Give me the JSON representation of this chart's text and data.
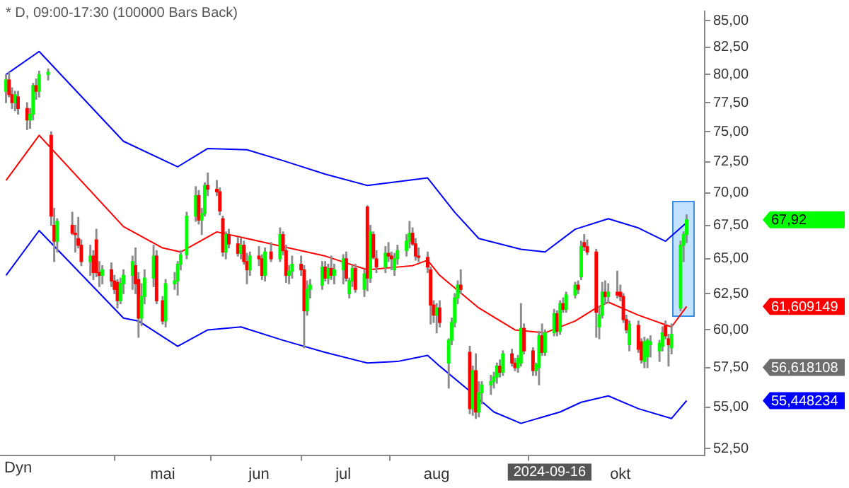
{
  "chart_data": {
    "type": "candlestick",
    "title": "* D, 09:00-17:30 (100000 Bars Back)",
    "x": [
      "2024-03-11",
      "2024-03-12",
      "2024-03-13",
      "2024-03-14",
      "2024-03-15",
      "2024-03-18",
      "2024-03-19",
      "2024-03-20",
      "2024-03-21",
      "2024-03-22",
      "2024-03-25",
      "2024-03-26",
      "2024-03-27",
      "2024-03-28",
      "2024-04-02",
      "2024-04-03",
      "2024-04-04",
      "2024-04-05",
      "2024-04-08",
      "2024-04-09",
      "2024-04-10",
      "2024-04-11",
      "2024-04-12",
      "2024-04-15",
      "2024-04-16",
      "2024-04-17",
      "2024-04-18",
      "2024-04-19",
      "2024-04-22",
      "2024-04-23",
      "2024-04-24",
      "2024-04-25",
      "2024-04-26",
      "2024-04-29",
      "2024-04-30",
      "2024-05-02",
      "2024-05-03",
      "2024-05-06",
      "2024-05-07",
      "2024-05-08",
      "2024-05-10",
      "2024-05-13",
      "2024-05-14",
      "2024-05-15",
      "2024-05-16",
      "2024-05-17",
      "2024-05-20",
      "2024-05-21",
      "2024-05-22",
      "2024-05-23",
      "2024-05-24",
      "2024-05-27",
      "2024-05-28",
      "2024-05-29",
      "2024-05-30",
      "2024-05-31",
      "2024-06-03",
      "2024-06-04",
      "2024-06-05",
      "2024-06-07",
      "2024-06-10",
      "2024-06-11",
      "2024-06-12",
      "2024-06-13",
      "2024-06-14",
      "2024-06-17",
      "2024-06-18",
      "2024-06-19",
      "2024-06-20",
      "2024-06-24",
      "2024-06-25",
      "2024-06-26",
      "2024-06-27",
      "2024-06-28",
      "2024-07-01",
      "2024-07-02",
      "2024-07-03",
      "2024-07-04",
      "2024-07-05",
      "2024-07-08",
      "2024-07-09",
      "2024-07-10",
      "2024-07-11",
      "2024-07-12",
      "2024-07-15",
      "2024-07-16",
      "2024-07-17",
      "2024-07-18",
      "2024-07-19",
      "2024-07-22",
      "2024-07-23",
      "2024-07-24",
      "2024-07-25",
      "2024-07-26",
      "2024-07-29",
      "2024-07-30",
      "2024-07-31",
      "2024-08-01",
      "2024-08-02",
      "2024-08-05",
      "2024-08-06",
      "2024-08-07",
      "2024-08-08",
      "2024-08-09",
      "2024-08-12",
      "2024-08-13",
      "2024-08-14",
      "2024-08-15",
      "2024-08-16",
      "2024-08-19",
      "2024-08-20",
      "2024-08-21",
      "2024-08-22",
      "2024-08-23",
      "2024-08-26",
      "2024-08-27",
      "2024-08-28",
      "2024-08-29",
      "2024-08-30",
      "2024-09-02",
      "2024-09-03",
      "2024-09-04",
      "2024-09-05",
      "2024-09-06",
      "2024-09-09",
      "2024-09-10",
      "2024-09-11",
      "2024-09-12",
      "2024-09-13",
      "2024-09-16",
      "2024-09-17",
      "2024-09-18",
      "2024-09-19",
      "2024-09-20",
      "2024-09-23",
      "2024-09-24",
      "2024-09-25",
      "2024-09-26",
      "2024-09-27",
      "2024-09-30",
      "2024-10-01",
      "2024-10-02",
      "2024-10-03",
      "2024-10-04",
      "2024-10-07",
      "2024-10-08",
      "2024-10-09",
      "2024-10-10",
      "2024-10-11",
      "2024-10-14",
      "2024-10-15",
      "2024-10-16",
      "2024-10-17",
      "2024-10-18",
      "2024-10-21",
      "2024-10-22",
      "2024-10-23"
    ],
    "ohlc": [
      [
        78.5,
        80,
        77.5,
        79.5
      ],
      [
        79.5,
        80.2,
        78,
        78.2
      ],
      [
        78.2,
        78.8,
        77,
        77.5
      ],
      [
        77.5,
        78.5,
        76.8,
        78.2
      ],
      [
        78,
        78.5,
        76.5,
        77
      ],
      [
        77,
        77.5,
        75.2,
        76
      ],
      [
        76,
        77,
        75.3,
        76.5
      ],
      [
        76.5,
        79.2,
        76,
        79
      ],
      [
        79,
        79.6,
        77.8,
        78.5
      ],
      [
        78.5,
        80.3,
        78,
        80
      ],
      [
        80,
        80.5,
        79.5,
        80.2
      ],
      [
        74.7,
        75,
        67.5,
        68.2
      ],
      [
        67.5,
        68.8,
        64.8,
        66.3
      ],
      [
        66.3,
        68,
        65.5,
        67.8
      ],
      [
        67.5,
        68.5,
        66.8,
        66.9
      ],
      [
        66.9,
        67.5,
        65.5,
        66.8
      ],
      [
        66.5,
        68.1,
        65.8,
        66
      ],
      [
        66,
        66.4,
        64.5,
        64.8
      ],
      [
        64.8,
        66,
        63.8,
        65.2
      ],
      [
        65.2,
        65.6,
        63.5,
        64
      ],
      [
        66.4,
        67.2,
        63.7,
        64
      ],
      [
        64,
        64.8,
        63,
        63.8
      ],
      [
        63.8,
        64.5,
        63.2,
        64.2
      ],
      [
        64.2,
        64.7,
        63,
        63.4
      ],
      [
        63.4,
        63.8,
        62.5,
        62.8
      ],
      [
        63.3,
        63.5,
        61.5,
        62
      ],
      [
        62,
        63.6,
        61.8,
        63.2
      ],
      [
        63.2,
        64.2,
        62.5,
        63.8
      ],
      [
        63.8,
        65.2,
        62.8,
        64.8
      ],
      [
        64.5,
        65.8,
        62.5,
        63.2
      ],
      [
        63.5,
        64,
        59.5,
        60.8
      ],
      [
        60.8,
        63.2,
        60.3,
        62.3
      ],
      [
        62.3,
        64.2,
        61.8,
        63.6
      ],
      [
        63.6,
        66,
        63,
        65.2
      ],
      [
        65.2,
        65.6,
        61.8,
        62
      ],
      [
        62,
        62.3,
        60.4,
        60.6
      ],
      [
        60.6,
        63.5,
        60.2,
        63.2
      ],
      [
        63.2,
        64,
        62.8,
        63.4
      ],
      [
        63.4,
        64.8,
        62.4,
        64.6
      ],
      [
        64.6,
        65.6,
        64.2,
        65.3
      ],
      [
        65.3,
        68.5,
        65,
        68.2
      ],
      [
        68.2,
        70.5,
        67.8,
        69.8
      ],
      [
        69.8,
        70.2,
        67.6,
        67.9
      ],
      [
        67.9,
        68.8,
        66.8,
        68.4
      ],
      [
        68.4,
        70.8,
        68.2,
        70.6
      ],
      [
        70.6,
        71.6,
        69.8,
        70.3
      ],
      [
        70.3,
        71,
        69.8,
        70.1
      ],
      [
        70.1,
        70.4,
        68.3,
        68.6
      ],
      [
        68,
        68.2,
        65.2,
        65.5
      ],
      [
        65.5,
        67,
        65,
        66.8
      ],
      [
        66.8,
        67.2,
        65.8,
        66.1
      ],
      [
        66.1,
        66.6,
        65.2,
        65.4
      ],
      [
        65.4,
        66.5,
        65,
        66
      ],
      [
        66,
        66.3,
        64.6,
        64.8
      ],
      [
        64.8,
        65.4,
        63.2,
        64.2
      ],
      [
        64.2,
        65.5,
        63.8,
        65.2
      ],
      [
        65.2,
        65.9,
        64.5,
        65
      ],
      [
        65,
        65.3,
        63.5,
        63.8
      ],
      [
        63.8,
        65.8,
        63.4,
        65.5
      ],
      [
        65.5,
        66.2,
        64.8,
        65
      ],
      [
        65,
        67.3,
        64.8,
        66.8
      ],
      [
        66.8,
        67,
        65.3,
        65.6
      ],
      [
        65.6,
        66,
        63.3,
        63.8
      ],
      [
        63.8,
        64.5,
        63.2,
        64.1
      ],
      [
        64.1,
        65.2,
        63.6,
        64.6
      ],
      [
        64.6,
        65.2,
        63.8,
        64.2
      ],
      [
        64.2,
        64.5,
        58.8,
        61.3
      ],
      [
        61.3,
        63.4,
        61,
        62.8
      ],
      [
        62.8,
        63.5,
        62.2,
        63.1
      ],
      [
        63.1,
        64.8,
        62.8,
        64.4
      ],
      [
        64.4,
        64.8,
        63.4,
        63.6
      ],
      [
        63.6,
        64.6,
        63.2,
        64.3
      ],
      [
        64.3,
        65.2,
        63.5,
        63.8
      ],
      [
        63.8,
        64.6,
        63.2,
        64.2
      ],
      [
        64.2,
        65.3,
        63.2,
        65
      ],
      [
        65,
        65.5,
        63.4,
        63.6
      ],
      [
        62.5,
        63.6,
        62.2,
        63.4
      ],
      [
        63.4,
        64.5,
        63,
        64.3
      ],
      [
        64.3,
        64.6,
        62.6,
        62.8
      ],
      [
        62.8,
        64.2,
        62.3,
        63.9
      ],
      [
        68.9,
        69,
        62.7,
        63.6
      ],
      [
        63.6,
        67.5,
        63.3,
        67
      ],
      [
        66.8,
        67,
        65,
        65.1
      ],
      [
        65,
        65.6,
        64,
        64.4
      ],
      [
        64.4,
        65.9,
        64,
        65.4
      ],
      [
        65.4,
        66.2,
        64.8,
        65.2
      ],
      [
        65.2,
        65.5,
        64.2,
        65
      ],
      [
        64.2,
        65.4,
        63.8,
        65
      ],
      [
        65,
        66,
        64.6,
        65.6
      ],
      [
        65.6,
        66.8,
        65.2,
        66.3
      ],
      [
        66.3,
        67.8,
        65.8,
        66.9
      ],
      [
        66.9,
        67.3,
        66,
        66.1
      ],
      [
        66.1,
        66.5,
        64.9,
        65.2
      ],
      [
        65.2,
        65.8,
        64.8,
        65.1
      ],
      [
        65.1,
        65.5,
        64,
        64.4
      ],
      [
        64.2,
        64.4,
        60.4,
        61.7
      ],
      [
        61.7,
        62,
        60.5,
        61
      ],
      [
        61,
        61.8,
        59.8,
        61.5
      ],
      [
        61.5,
        62,
        60.2,
        60.5
      ],
      [
        57.8,
        59.4,
        56.2,
        59.3
      ],
      [
        59.3,
        60.8,
        59,
        60.5
      ],
      [
        60.5,
        62.5,
        60.2,
        62.2
      ],
      [
        62.2,
        63.4,
        61.8,
        63.1
      ],
      [
        63.1,
        64.2,
        62.5,
        62.8
      ],
      [
        58.5,
        58.9,
        54.6,
        54.9
      ],
      [
        54.9,
        57.6,
        54.5,
        57.3
      ],
      [
        57.3,
        58.4,
        54.3,
        54.7
      ],
      [
        54.7,
        56.6,
        54.4,
        55.9
      ],
      [
        55.9,
        56.6,
        55.2,
        56.4
      ],
      [
        56.4,
        57,
        55.8,
        56.6
      ],
      [
        56.6,
        57.2,
        56.2,
        56.9
      ],
      [
        56.9,
        57.8,
        56.5,
        57.6
      ],
      [
        57.6,
        58,
        56.9,
        57.2
      ],
      [
        57.2,
        58.6,
        57,
        58.4
      ],
      [
        58.4,
        58.7,
        57.6,
        57.8
      ],
      [
        57.8,
        58.1,
        57.3,
        57.5
      ],
      [
        57.5,
        58.3,
        57.2,
        58.1
      ],
      [
        57.8,
        61.8,
        57.6,
        60.1
      ],
      [
        60.1,
        60.4,
        58.4,
        58.6
      ],
      [
        58.6,
        58.8,
        57,
        57.3
      ],
      [
        57.3,
        57.8,
        57,
        57.7
      ],
      [
        57.5,
        59.9,
        56.4,
        59.6
      ],
      [
        59.6,
        60.4,
        58.3,
        58.5
      ],
      [
        58.5,
        60,
        58.3,
        59.8
      ],
      [
        59.8,
        61.4,
        59.6,
        61.1
      ],
      [
        61.1,
        61.3,
        59.6,
        59.9
      ],
      [
        59.9,
        62,
        59.7,
        61.8
      ],
      [
        61.8,
        62.2,
        61.2,
        61.4
      ],
      [
        61.4,
        62.6,
        61.2,
        62.4
      ],
      [
        62.4,
        63.3,
        62.2,
        63.1
      ],
      [
        63.1,
        63.4,
        62.5,
        62.8
      ],
      [
        63.7,
        66.3,
        63.5,
        65.9
      ],
      [
        66.2,
        66.8,
        65.6,
        65.9
      ],
      [
        65.9,
        66.4,
        65.3,
        65.5
      ],
      [
        65.5,
        65.7,
        59.5,
        61.2
      ],
      [
        60.2,
        61.6,
        59.4,
        61
      ],
      [
        61,
        63.3,
        60.8,
        62.6
      ],
      [
        62.6,
        63.4,
        61.8,
        62.3
      ],
      [
        62.3,
        63.2,
        61.9,
        62.6
      ],
      [
        62.6,
        64.1,
        62.2,
        62.4
      ],
      [
        62.6,
        63.1,
        62,
        62.3
      ],
      [
        62.3,
        62.5,
        60.5,
        60.7
      ],
      [
        60.7,
        61,
        59.8,
        60
      ],
      [
        59,
        60.6,
        58.6,
        60.4
      ],
      [
        60.3,
        60.6,
        58.5,
        58.7
      ],
      [
        59.2,
        59.4,
        57.8,
        58
      ],
      [
        57.9,
        59.5,
        57.5,
        59.2
      ],
      [
        58.2,
        59.4,
        57.5,
        59.3
      ],
      [
        59,
        59.6,
        58.2,
        59.2
      ],
      [
        58.6,
        59.3,
        57.9,
        59.1
      ],
      [
        58.9,
        60.2,
        58.6,
        59.8
      ],
      [
        60.3,
        60.6,
        59.4,
        59.6
      ],
      [
        59.4,
        59.7,
        57.6,
        59
      ],
      [
        58.8,
        60.4,
        58.4,
        59.7
      ],
      [
        61.5,
        66.3,
        61.3,
        66
      ],
      [
        66,
        67,
        64.8,
        66.8
      ],
      [
        66.8,
        68.3,
        66.2,
        67.92
      ]
    ],
    "colors": [
      "#00ff00",
      "#ff0000",
      "#ff0000",
      "#00ff00",
      "#ff0000",
      "#ff0000",
      "#00ff00",
      "#00ff00",
      "#ff0000",
      "#00ff00",
      "#00ff00",
      "#ff0000",
      "#ff0000",
      "#00ff00",
      "#ff0000",
      "#ff0000",
      "#ff0000",
      "#ff0000",
      "#00ff00",
      "#ff0000",
      "#ff0000",
      "#ff0000",
      "#00ff00",
      "#ff0000",
      "#ff0000",
      "#ff0000",
      "#00ff00",
      "#00ff00",
      "#00ff00",
      "#ff0000",
      "#ff0000",
      "#00ff00",
      "#00ff00",
      "#00ff00",
      "#ff0000",
      "#ff0000",
      "#00ff00",
      "#00ff00",
      "#00ff00",
      "#00ff00",
      "#00ff00",
      "#00ff00",
      "#ff0000",
      "#00ff00",
      "#00ff00",
      "#ff0000",
      "#ff0000",
      "#ff0000",
      "#ff0000",
      "#00ff00",
      "#ff0000",
      "#ff0000",
      "#00ff00",
      "#ff0000",
      "#ff0000",
      "#00ff00",
      "#ff0000",
      "#ff0000",
      "#00ff00",
      "#ff0000",
      "#00ff00",
      "#ff0000",
      "#ff0000",
      "#00ff00",
      "#00ff00",
      "#ff0000",
      "#ff0000",
      "#00ff00",
      "#00ff00",
      "#00ff00",
      "#ff0000",
      "#00ff00",
      "#ff0000",
      "#00ff00",
      "#00ff00",
      "#ff0000",
      "#00ff00",
      "#00ff00",
      "#ff0000",
      "#00ff00",
      "#ff0000",
      "#00ff00",
      "#ff0000",
      "#ff0000",
      "#00ff00",
      "#ff0000",
      "#ff0000",
      "#00ff00",
      "#00ff00",
      "#00ff00",
      "#00ff00",
      "#ff0000",
      "#ff0000",
      "#ff0000",
      "#ff0000",
      "#ff0000",
      "#ff0000",
      "#00ff00",
      "#ff0000",
      "#00ff00",
      "#00ff00",
      "#00ff00",
      "#00ff00",
      "#ff0000",
      "#ff0000",
      "#00ff00",
      "#ff0000",
      "#00ff00",
      "#00ff00",
      "#00ff00",
      "#00ff00",
      "#00ff00",
      "#ff0000",
      "#00ff00",
      "#ff0000",
      "#ff0000",
      "#00ff00",
      "#00ff00",
      "#ff0000",
      "#ff0000",
      "#00ff00",
      "#00ff00",
      "#ff0000",
      "#00ff00",
      "#00ff00",
      "#ff0000",
      "#00ff00",
      "#ff0000",
      "#00ff00",
      "#00ff00",
      "#ff0000",
      "#00ff00",
      "#ff0000",
      "#ff0000",
      "#ff0000",
      "#00ff00",
      "#00ff00",
      "#ff0000",
      "#00ff00",
      "#ff0000",
      "#ff0000",
      "#ff0000",
      "#ff0000",
      "#00ff00",
      "#ff0000",
      "#ff0000",
      "#00ff00",
      "#00ff00",
      "#00ff00",
      "#00ff00",
      "#00ff00",
      "#ff0000",
      "#ff0000",
      "#00ff00",
      "#00ff00",
      "#00ff00",
      "#00ff00"
    ],
    "series": [
      {
        "type": "line",
        "color": "#0000ff",
        "x": [
          "2024-03-11",
          "2024-03-22",
          "2024-04-19",
          "2024-05-07",
          "2024-05-17",
          "2024-05-30",
          "2024-06-11",
          "2024-06-25",
          "2024-07-09",
          "2024-07-29",
          "2024-08-07",
          "2024-08-15",
          "2024-08-29",
          "2024-09-06",
          "2024-09-16",
          "2024-09-27",
          "2024-10-07",
          "2024-10-16",
          "2024-10-23"
        ],
        "values": [
          80.0,
          82.1,
          74.2,
          72.1,
          73.6,
          73.5,
          72.6,
          71.5,
          70.6,
          71.2,
          68.5,
          66.5,
          65.7,
          65.5,
          67.2,
          68.0,
          67.3,
          66.3,
          67.7
        ]
      },
      {
        "type": "line",
        "color": "#ff0000",
        "x": [
          "2024-03-11",
          "2024-03-22",
          "2024-04-19",
          "2024-05-02",
          "2024-05-08",
          "2024-05-20",
          "2024-05-30",
          "2024-06-11",
          "2024-06-25",
          "2024-07-09",
          "2024-07-24",
          "2024-07-29",
          "2024-08-02",
          "2024-08-15",
          "2024-08-27",
          "2024-09-06",
          "2024-09-16",
          "2024-09-23",
          "2024-09-27",
          "2024-10-07",
          "2024-10-18",
          "2024-10-23"
        ],
        "values": [
          71.0,
          74.7,
          67.4,
          65.8,
          65.5,
          67.0,
          66.5,
          65.9,
          65.2,
          64.2,
          64.5,
          64.9,
          63.8,
          61.5,
          60.0,
          59.8,
          60.6,
          61.5,
          61.9,
          61.0,
          60.2,
          61.6
        ]
      },
      {
        "type": "line",
        "color": "#0000ff",
        "x": [
          "2024-03-11",
          "2024-03-22",
          "2024-04-19",
          "2024-04-24",
          "2024-05-07",
          "2024-05-17",
          "2024-05-28",
          "2024-06-11",
          "2024-06-25",
          "2024-07-09",
          "2024-07-19",
          "2024-07-29",
          "2024-08-02",
          "2024-08-12",
          "2024-08-20",
          "2024-08-29",
          "2024-09-11",
          "2024-09-18",
          "2024-09-27",
          "2024-10-07",
          "2024-10-18",
          "2024-10-23"
        ],
        "values": [
          63.8,
          67.1,
          60.8,
          60.6,
          58.9,
          60.0,
          60.2,
          59.3,
          58.5,
          57.8,
          57.9,
          58.3,
          57.6,
          56.0,
          54.7,
          54.0,
          54.7,
          55.3,
          55.7,
          54.9,
          54.3,
          55.4
        ]
      }
    ],
    "log": true,
    "grid": false,
    "legend": false,
    "ylim": [
      52.1,
      85.9
    ],
    "yticks": [
      {
        "value": 52.5,
        "label": "52,50"
      },
      {
        "value": 55,
        "label": "55,00"
      },
      {
        "value": 57.5,
        "label": "57,50"
      },
      {
        "value": 60,
        "label": "60,00"
      },
      {
        "value": 62.5,
        "label": "62,50"
      },
      {
        "value": 65,
        "label": "65,00"
      },
      {
        "value": 67.5,
        "label": "67,50"
      },
      {
        "value": 70,
        "label": "70,00"
      },
      {
        "value": 72.5,
        "label": "72,50"
      },
      {
        "value": 75,
        "label": "75,00"
      },
      {
        "value": 77.5,
        "label": "77,50"
      },
      {
        "value": 80,
        "label": "80,00"
      },
      {
        "value": 82.5,
        "label": "82,50"
      },
      {
        "value": 85,
        "label": "85,00"
      }
    ],
    "xlim": [
      "2024-03-09",
      "2024-10-29"
    ],
    "xticks": [
      {
        "value": "2024-05-02",
        "label": "mai"
      },
      {
        "value": "2024-06-03",
        "label": "jun"
      },
      {
        "value": "2024-07-01",
        "label": "jul"
      },
      {
        "value": "2024-08-01",
        "label": "aug"
      },
      {
        "value": "2024-10-01",
        "label": "okt"
      }
    ],
    "annotations": [
      "Dyn",
      "2024-09-16",
      "56,618108",
      "67,92",
      "61,609149",
      "55,448234"
    ]
  }
}
